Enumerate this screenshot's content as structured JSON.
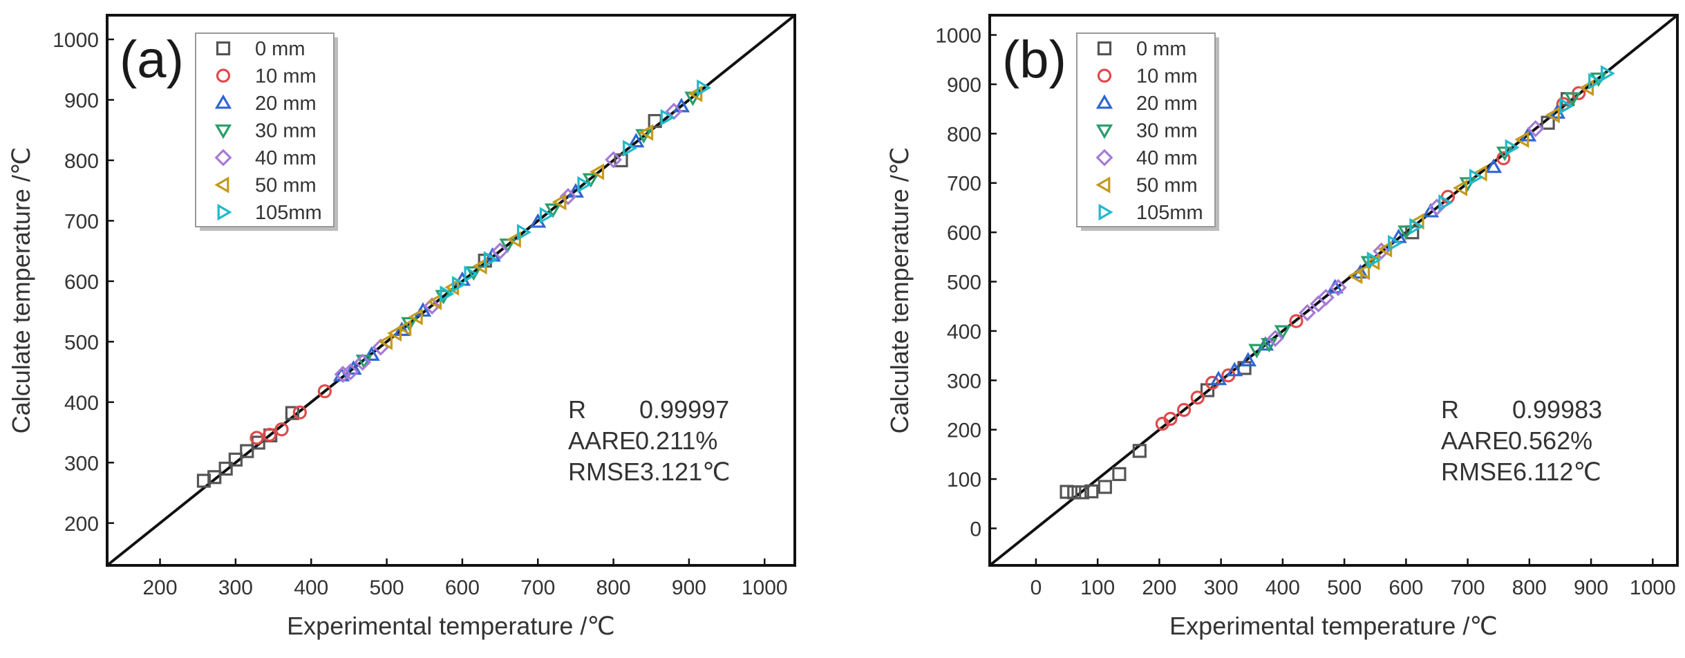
{
  "chart_data": [
    {
      "type": "scatter",
      "panel_label": "(a)",
      "xlabel": "Experimental temperature /℃",
      "ylabel": "Calculate temperature /℃",
      "xlim": [
        130,
        1040
      ],
      "ylim": [
        130,
        1040
      ],
      "xticks": [
        200,
        300,
        400,
        500,
        600,
        700,
        800,
        900,
        1000
      ],
      "yticks": [
        200,
        300,
        400,
        500,
        600,
        700,
        800,
        900,
        1000
      ],
      "reference_line": "y = x",
      "legend_position": "top-left",
      "stats": [
        {
          "name": "R",
          "value": "0.99997"
        },
        {
          "name": "AARE",
          "value": "0.211%"
        },
        {
          "name": "RMSE",
          "value": "3.121℃"
        }
      ],
      "series": [
        {
          "name": "0  mm",
          "marker": "square",
          "color": "#555555",
          "points": [
            [
              258,
              270
            ],
            [
              272,
              276
            ],
            [
              287,
              290
            ],
            [
              300,
              305
            ],
            [
              315,
              319
            ],
            [
              330,
              333
            ],
            [
              346,
              345
            ],
            [
              375,
              382
            ],
            [
              630,
              634
            ],
            [
              810,
              800
            ],
            [
              855,
              865
            ]
          ]
        },
        {
          "name": "10 mm",
          "marker": "circle",
          "color": "#e04a4a",
          "points": [
            [
              328,
              341
            ],
            [
              345,
              346
            ],
            [
              361,
              355
            ],
            [
              385,
              383
            ],
            [
              418,
              418
            ]
          ]
        },
        {
          "name": "20 mm",
          "marker": "triangle-up",
          "color": "#2f66d0",
          "points": [
            [
              440,
              444
            ],
            [
              456,
              455
            ],
            [
              480,
              478
            ],
            [
              520,
              519
            ],
            [
              548,
              551
            ],
            [
              600,
              602
            ],
            [
              640,
              642
            ],
            [
              700,
              698
            ],
            [
              750,
              748
            ],
            [
              830,
              831
            ],
            [
              890,
              889
            ]
          ]
        },
        {
          "name": "30 mm",
          "marker": "triangle-down",
          "color": "#2a9d6a",
          "points": [
            [
              470,
              469
            ],
            [
              530,
              531
            ],
            [
              575,
              576
            ],
            [
              615,
              615
            ],
            [
              660,
              661
            ],
            [
              720,
              719
            ],
            [
              770,
              769
            ],
            [
              840,
              842
            ],
            [
              905,
              904
            ]
          ]
        },
        {
          "name": "40 mm",
          "marker": "diamond",
          "color": "#a57ad6",
          "points": [
            [
              442,
              446
            ],
            [
              452,
              450
            ],
            [
              468,
              466
            ],
            [
              492,
              491
            ],
            [
              560,
              559
            ],
            [
              650,
              650
            ],
            [
              740,
              740
            ],
            [
              800,
              801
            ],
            [
              880,
              881
            ]
          ]
        },
        {
          "name": "50 mm",
          "marker": "triangle-left",
          "color": "#c39a1c",
          "points": [
            [
              500,
              500
            ],
            [
              512,
              514
            ],
            [
              525,
              523
            ],
            [
              540,
              541
            ],
            [
              565,
              566
            ],
            [
              588,
              590
            ],
            [
              625,
              625
            ],
            [
              670,
              669
            ],
            [
              730,
              731
            ],
            [
              780,
              781
            ],
            [
              845,
              846
            ],
            [
              910,
              910
            ]
          ]
        },
        {
          "name": "105mm",
          "marker": "triangle-right",
          "color": "#20b9c9",
          "points": [
            [
              578,
              579
            ],
            [
              594,
              595
            ],
            [
              610,
              612
            ],
            [
              636,
              636
            ],
            [
              680,
              681
            ],
            [
              710,
              709
            ],
            [
              760,
              760
            ],
            [
              820,
              820
            ],
            [
              870,
              871
            ],
            [
              918,
              920
            ]
          ]
        }
      ]
    },
    {
      "type": "scatter",
      "panel_label": "(b)",
      "xlabel": "Experimental temperature /℃",
      "ylabel": "Calculate temperature /℃",
      "xlim": [
        -75,
        1040
      ],
      "ylim": [
        -75,
        1040
      ],
      "xticks": [
        0,
        100,
        200,
        300,
        400,
        500,
        600,
        700,
        800,
        900,
        1000
      ],
      "yticks": [
        0,
        100,
        200,
        300,
        400,
        500,
        600,
        700,
        800,
        900,
        1000
      ],
      "reference_line": "y = x",
      "legend_position": "top-left",
      "stats": [
        {
          "name": "R",
          "value": "0.99983"
        },
        {
          "name": "AARE",
          "value": "0.562%"
        },
        {
          "name": "RMSE",
          "value": "6.112℃"
        }
      ],
      "series": [
        {
          "name": "0  mm",
          "marker": "square",
          "color": "#555555",
          "points": [
            [
              50,
              74
            ],
            [
              62,
              73
            ],
            [
              75,
              73
            ],
            [
              90,
              75
            ],
            [
              112,
              84
            ],
            [
              135,
              110
            ],
            [
              168,
              157
            ],
            [
              278,
              280
            ],
            [
              338,
              325
            ],
            [
              610,
              600
            ],
            [
              830,
              822
            ],
            [
              862,
              870
            ]
          ]
        },
        {
          "name": "10 mm",
          "marker": "circle",
          "color": "#e04a4a",
          "points": [
            [
              205,
              212
            ],
            [
              218,
              222
            ],
            [
              240,
              240
            ],
            [
              262,
              265
            ],
            [
              286,
              295
            ],
            [
              312,
              310
            ],
            [
              422,
              420
            ],
            [
              668,
              672
            ],
            [
              758,
              750
            ],
            [
              855,
              860
            ],
            [
              880,
              882
            ]
          ]
        },
        {
          "name": "20 mm",
          "marker": "triangle-up",
          "color": "#2f66d0",
          "points": [
            [
              296,
              302
            ],
            [
              322,
              320
            ],
            [
              344,
              340
            ],
            [
              372,
              372
            ],
            [
              485,
              488
            ],
            [
              526,
              518
            ],
            [
              588,
              590
            ],
            [
              640,
              642
            ],
            [
              742,
              732
            ],
            [
              798,
              796
            ],
            [
              845,
              842
            ]
          ]
        },
        {
          "name": "30 mm",
          "marker": "triangle-down",
          "color": "#2a9d6a",
          "points": [
            [
              358,
              362
            ],
            [
              378,
              374
            ],
            [
              400,
              400
            ],
            [
              540,
              540
            ],
            [
              600,
              602
            ],
            [
              700,
              700
            ],
            [
              760,
              762
            ],
            [
              870,
              872
            ],
            [
              912,
              912
            ]
          ]
        },
        {
          "name": "40 mm",
          "marker": "diamond",
          "color": "#a57ad6",
          "points": [
            [
              388,
              385
            ],
            [
              440,
              437
            ],
            [
              458,
              455
            ],
            [
              470,
              468
            ],
            [
              490,
              488
            ],
            [
              560,
              562
            ],
            [
              650,
              651
            ],
            [
              810,
              810
            ]
          ]
        },
        {
          "name": "50 mm",
          "marker": "triangle-left",
          "color": "#c39a1c",
          "points": [
            [
              520,
              512
            ],
            [
              532,
              520
            ],
            [
              548,
              540
            ],
            [
              568,
              566
            ],
            [
              620,
              622
            ],
            [
              690,
              690
            ],
            [
              722,
              720
            ],
            [
              790,
              788
            ],
            [
              840,
              838
            ],
            [
              895,
              893
            ]
          ]
        },
        {
          "name": "105mm",
          "marker": "triangle-right",
          "color": "#20b9c9",
          "points": [
            [
              546,
              544
            ],
            [
              580,
              578
            ],
            [
              615,
              612
            ],
            [
              662,
              660
            ],
            [
              712,
              712
            ],
            [
              770,
              772
            ],
            [
              858,
              856
            ],
            [
              905,
              906
            ],
            [
              925,
              922
            ]
          ]
        }
      ]
    }
  ]
}
